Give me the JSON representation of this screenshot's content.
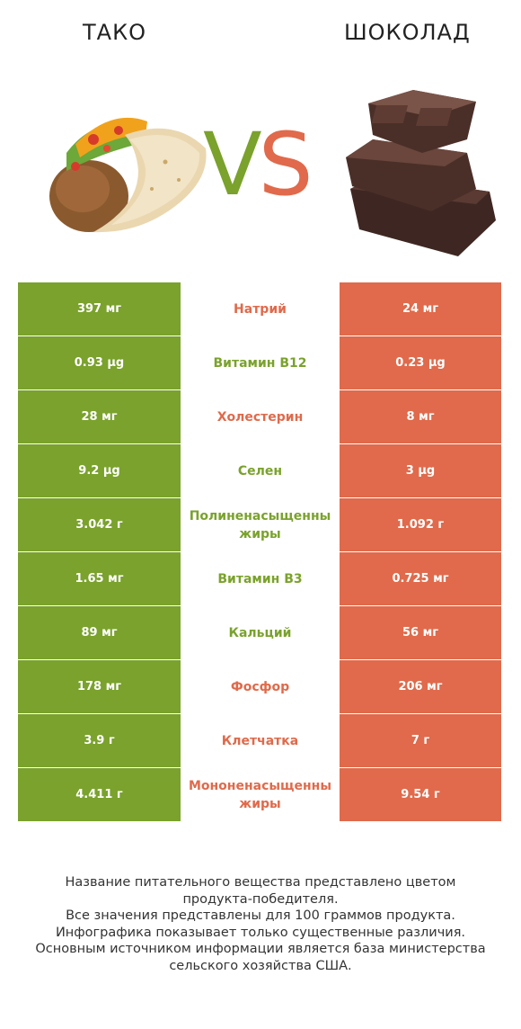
{
  "header": {
    "left_title": "ТАКО",
    "right_title": "ШОКОЛАД",
    "vs_v": "V",
    "vs_s": "S",
    "colors": {
      "left": "#7aa22c",
      "right": "#e06a4b"
    }
  },
  "rows": [
    {
      "left": "397 мг",
      "nutrient": "Натрий",
      "right": "24 мг",
      "winner": "right"
    },
    {
      "left": "0.93 µg",
      "nutrient": "Витамин B12",
      "right": "0.23 µg",
      "winner": "left"
    },
    {
      "left": "28 мг",
      "nutrient": "Холестерин",
      "right": "8 мг",
      "winner": "right"
    },
    {
      "left": "9.2 µg",
      "nutrient": "Селен",
      "right": "3 µg",
      "winner": "left"
    },
    {
      "left": "3.042 г",
      "nutrient": "Полиненасыщенные жиры",
      "nutrient_line1": "Полиненасыщенны",
      "nutrient_line2": "жиры",
      "right": "1.092 г",
      "winner": "left"
    },
    {
      "left": "1.65 мг",
      "nutrient": "Витамин B3",
      "right": "0.725 мг",
      "winner": "left"
    },
    {
      "left": "89 мг",
      "nutrient": "Кальций",
      "right": "56 мг",
      "winner": "left"
    },
    {
      "left": "178 мг",
      "nutrient": "Фосфор",
      "right": "206 мг",
      "winner": "right"
    },
    {
      "left": "3.9 г",
      "nutrient": "Клетчатка",
      "right": "7 г",
      "winner": "right"
    },
    {
      "left": "4.411 г",
      "nutrient": "Мононенасыщенные жиры",
      "nutrient_line1": "Мононенасыщенны",
      "nutrient_line2": "жиры",
      "right": "9.54 г",
      "winner": "right"
    }
  ],
  "footer": {
    "line1": "Название питательного вещества представлено цветом",
    "line2": "продукта-победителя.",
    "line3": "Все значения представлены для 100 граммов продукта.",
    "line4": "Инфографика показывает только существенные различия.",
    "line5": "Основным источником информации является база министерства",
    "line6": "сельского хозяйства США."
  }
}
